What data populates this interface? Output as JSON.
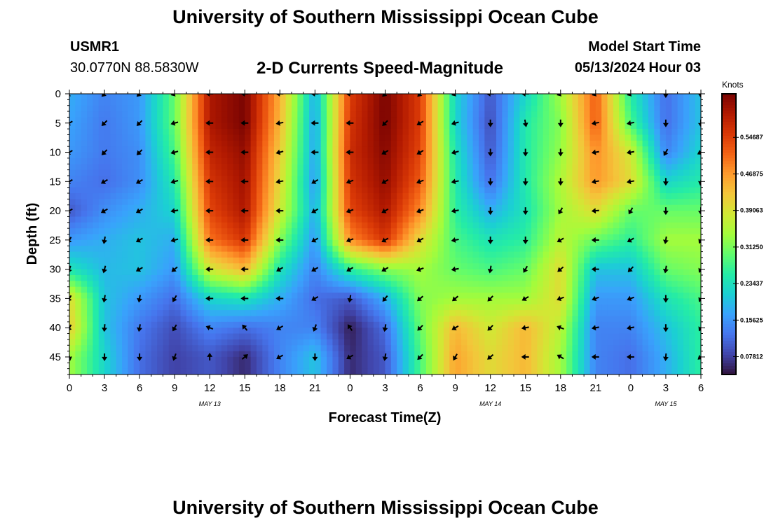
{
  "header": {
    "title": "University of Southern Mississippi Ocean Cube",
    "station": "USMR1",
    "coords": "30.0770N  88.5830W",
    "subtitle": "2-D Currents Speed-Magnitude",
    "start_label": "Model Start Time",
    "start_value": "05/13/2024 Hour 03",
    "bottom_title": "University of Southern Mississippi Ocean Cube"
  },
  "chart_data": {
    "type": "heatmap",
    "title": "2-D Currents Speed-Magnitude",
    "xlabel": "Forecast Time(Z)",
    "ylabel": "Depth (ft)",
    "x_tick_labels": [
      "0",
      "3",
      "6",
      "9",
      "12",
      "15",
      "18",
      "21",
      "0",
      "3",
      "6",
      "9",
      "12",
      "15",
      "18",
      "21",
      "0",
      "3",
      "6"
    ],
    "x_range_hours": [
      0,
      54
    ],
    "day_labels": [
      {
        "label": "MAY 13",
        "hour": 12
      },
      {
        "label": "MAY 14",
        "hour": 36
      },
      {
        "label": "MAY 15",
        "hour": 51
      }
    ],
    "y_ticks": [
      0,
      5,
      10,
      15,
      20,
      25,
      30,
      35,
      40,
      45
    ],
    "y_range_ft": [
      0,
      48
    ],
    "colorbar": {
      "unit_label": "Knots",
      "tick_labels": [
        "0.54687",
        "0.46875",
        "0.39063",
        "0.31250",
        "0.23437",
        "0.15625",
        "0.07812"
      ],
      "tick_values": [
        0.54687,
        0.46875,
        0.39063,
        0.3125,
        0.23437,
        0.15625,
        0.07812
      ],
      "range": [
        0.04,
        0.64
      ]
    },
    "colormap": [
      "#30123b",
      "#4145ab",
      "#4675ed",
      "#39a2fc",
      "#1bcfd4",
      "#24eca6",
      "#61fc6c",
      "#a4fc3b",
      "#d1e834",
      "#f3c63a",
      "#fe9b2d",
      "#f36315",
      "#d93806",
      "#b11901",
      "#7a0402"
    ],
    "speed_grid": {
      "depths_ft": [
        0,
        5,
        10,
        15,
        20,
        25,
        30,
        35,
        40,
        45
      ],
      "hours": [
        0,
        3,
        6,
        9,
        12,
        15,
        18,
        21,
        24,
        27,
        30,
        33,
        36,
        39,
        42,
        45,
        48,
        51,
        54
      ],
      "values": [
        [
          0.18,
          0.14,
          0.16,
          0.3,
          0.6,
          0.64,
          0.45,
          0.18,
          0.55,
          0.64,
          0.55,
          0.22,
          0.1,
          0.22,
          0.34,
          0.52,
          0.25,
          0.12,
          0.2
        ],
        [
          0.17,
          0.13,
          0.16,
          0.3,
          0.6,
          0.64,
          0.44,
          0.17,
          0.56,
          0.64,
          0.55,
          0.22,
          0.09,
          0.25,
          0.32,
          0.52,
          0.28,
          0.12,
          0.2
        ],
        [
          0.16,
          0.13,
          0.15,
          0.28,
          0.58,
          0.62,
          0.42,
          0.17,
          0.57,
          0.63,
          0.54,
          0.24,
          0.1,
          0.25,
          0.33,
          0.48,
          0.38,
          0.14,
          0.22
        ],
        [
          0.14,
          0.12,
          0.15,
          0.25,
          0.56,
          0.61,
          0.4,
          0.16,
          0.56,
          0.62,
          0.52,
          0.25,
          0.12,
          0.25,
          0.35,
          0.47,
          0.4,
          0.22,
          0.25
        ],
        [
          0.1,
          0.15,
          0.18,
          0.22,
          0.54,
          0.6,
          0.38,
          0.18,
          0.54,
          0.6,
          0.48,
          0.26,
          0.18,
          0.24,
          0.34,
          0.4,
          0.3,
          0.3,
          0.3
        ],
        [
          0.16,
          0.18,
          0.2,
          0.18,
          0.5,
          0.56,
          0.32,
          0.16,
          0.48,
          0.56,
          0.4,
          0.28,
          0.24,
          0.26,
          0.36,
          0.3,
          0.26,
          0.34,
          0.34
        ],
        [
          0.24,
          0.19,
          0.2,
          0.16,
          0.38,
          0.44,
          0.24,
          0.14,
          0.26,
          0.32,
          0.34,
          0.3,
          0.28,
          0.3,
          0.4,
          0.2,
          0.2,
          0.3,
          0.32
        ],
        [
          0.4,
          0.2,
          0.16,
          0.12,
          0.22,
          0.24,
          0.18,
          0.12,
          0.1,
          0.18,
          0.32,
          0.34,
          0.34,
          0.34,
          0.4,
          0.16,
          0.16,
          0.24,
          0.28
        ],
        [
          0.42,
          0.2,
          0.13,
          0.09,
          0.14,
          0.12,
          0.14,
          0.14,
          0.05,
          0.12,
          0.3,
          0.44,
          0.38,
          0.44,
          0.36,
          0.14,
          0.14,
          0.2,
          0.26
        ],
        [
          0.34,
          0.22,
          0.12,
          0.08,
          0.1,
          0.06,
          0.14,
          0.2,
          0.06,
          0.1,
          0.28,
          0.46,
          0.4,
          0.44,
          0.34,
          0.14,
          0.12,
          0.18,
          0.26
        ]
      ]
    },
    "direction_grid_deg": {
      "comment": "arrow direction in screen degrees (0 = east, 90 = south), same grid as speed_grid",
      "values": [
        [
          150,
          135,
          135,
          160,
          180,
          180,
          180,
          180,
          180,
          135,
          135,
          160,
          180,
          180,
          160,
          160,
          160,
          90,
          90
        ],
        [
          150,
          135,
          135,
          165,
          180,
          180,
          170,
          180,
          180,
          135,
          150,
          165,
          90,
          80,
          90,
          170,
          170,
          90,
          90
        ],
        [
          150,
          135,
          135,
          165,
          180,
          180,
          165,
          180,
          180,
          150,
          150,
          165,
          90,
          90,
          90,
          170,
          170,
          120,
          150
        ],
        [
          150,
          150,
          150,
          165,
          180,
          180,
          170,
          150,
          160,
          150,
          160,
          170,
          90,
          90,
          90,
          170,
          170,
          90,
          100
        ],
        [
          150,
          150,
          150,
          170,
          180,
          180,
          180,
          150,
          160,
          150,
          160,
          170,
          90,
          90,
          120,
          175,
          120,
          90,
          90
        ],
        [
          120,
          100,
          150,
          165,
          180,
          180,
          180,
          150,
          160,
          150,
          150,
          170,
          90,
          90,
          150,
          180,
          150,
          100,
          120
        ],
        [
          110,
          105,
          150,
          140,
          180,
          180,
          150,
          150,
          150,
          150,
          160,
          170,
          100,
          120,
          140,
          180,
          135,
          100,
          120
        ],
        [
          120,
          100,
          100,
          120,
          180,
          180,
          180,
          150,
          100,
          130,
          140,
          140,
          135,
          150,
          160,
          160,
          160,
          90,
          120
        ],
        [
          120,
          95,
          100,
          120,
          200,
          230,
          150,
          110,
          235,
          100,
          135,
          150,
          135,
          170,
          200,
          170,
          170,
          90,
          120
        ],
        [
          80,
          90,
          90,
          110,
          270,
          320,
          150,
          90,
          150,
          100,
          135,
          120,
          140,
          180,
          210,
          180,
          180,
          95,
          140
        ]
      ]
    }
  }
}
